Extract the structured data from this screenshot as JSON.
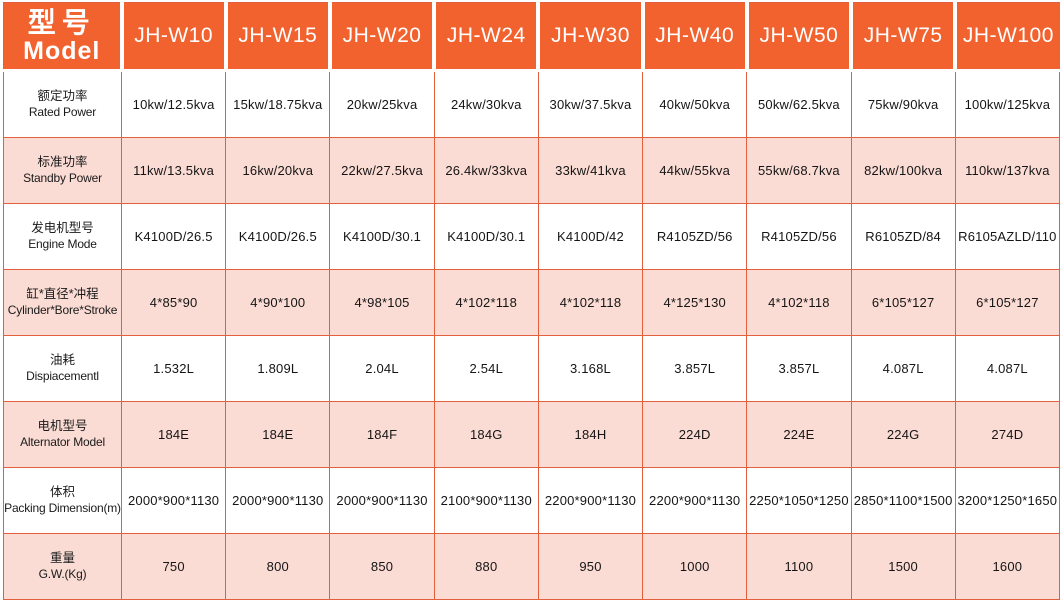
{
  "colors": {
    "header_bg": "#F2622F",
    "border": "#E2603C",
    "row_pink": "#FBDCD4",
    "row_white": "#FFFFFF",
    "header_text": "#FFFFFF",
    "body_text": "#151515"
  },
  "table": {
    "header": {
      "label_zh": "型号",
      "label_en": "Model",
      "models": [
        "JH-W10",
        "JH-W15",
        "JH-W20",
        "JH-W24",
        "JH-W30",
        "JH-W40",
        "JH-W50",
        "JH-W75",
        "JH-W100"
      ]
    },
    "rows": [
      {
        "label_zh": "额定功率",
        "label_en": "Rated Power",
        "values": [
          "10kw/12.5kva",
          "15kw/18.75kva",
          "20kw/25kva",
          "24kw/30kva",
          "30kw/37.5kva",
          "40kw/50kva",
          "50kw/62.5kva",
          "75kw/90kva",
          "100kw/125kva"
        ]
      },
      {
        "label_zh": "标准功率",
        "label_en": "Standby Power",
        "values": [
          "11kw/13.5kva",
          "16kw/20kva",
          "22kw/27.5kva",
          "26.4kw/33kva",
          "33kw/41kva",
          "44kw/55kva",
          "55kw/68.7kva",
          "82kw/100kva",
          "110kw/137kva"
        ]
      },
      {
        "label_zh": "发电机型号",
        "label_en": "Engine Mode",
        "values": [
          "K4100D/26.5",
          "K4100D/26.5",
          "K4100D/30.1",
          "K4100D/30.1",
          "K4100D/42",
          "R4105ZD/56",
          "R4105ZD/56",
          "R6105ZD/84",
          "R6105AZLD/110"
        ]
      },
      {
        "label_zh": "缸*直径*冲程",
        "label_en": "Cylinder*Bore*Stroke",
        "values": [
          "4*85*90",
          "4*90*100",
          "4*98*105",
          "4*102*118",
          "4*102*118",
          "4*125*130",
          "4*102*118",
          "6*105*127",
          "6*105*127"
        ]
      },
      {
        "label_zh": "油耗",
        "label_en": "Dispiacementl",
        "values": [
          "1.532L",
          "1.809L",
          "2.04L",
          "2.54L",
          "3.168L",
          "3.857L",
          "3.857L",
          "4.087L",
          "4.087L"
        ]
      },
      {
        "label_zh": "电机型号",
        "label_en": "Alternator Model",
        "values": [
          "184E",
          "184E",
          "184F",
          "184G",
          "184H",
          "224D",
          "224E",
          "224G",
          "274D"
        ]
      },
      {
        "label_zh": "体积",
        "label_en": "Packing Dimension(m)",
        "values": [
          "2000*900*1130",
          "2000*900*1130",
          "2000*900*1130",
          "2100*900*1130",
          "2200*900*1130",
          "2200*900*1130",
          "2250*1050*1250",
          "2850*1100*1500",
          "3200*1250*1650"
        ]
      },
      {
        "label_zh": "重量",
        "label_en": "G.W.(Kg)",
        "values": [
          "750",
          "800",
          "850",
          "880",
          "950",
          "1000",
          "1100",
          "1500",
          "1600"
        ]
      }
    ]
  }
}
